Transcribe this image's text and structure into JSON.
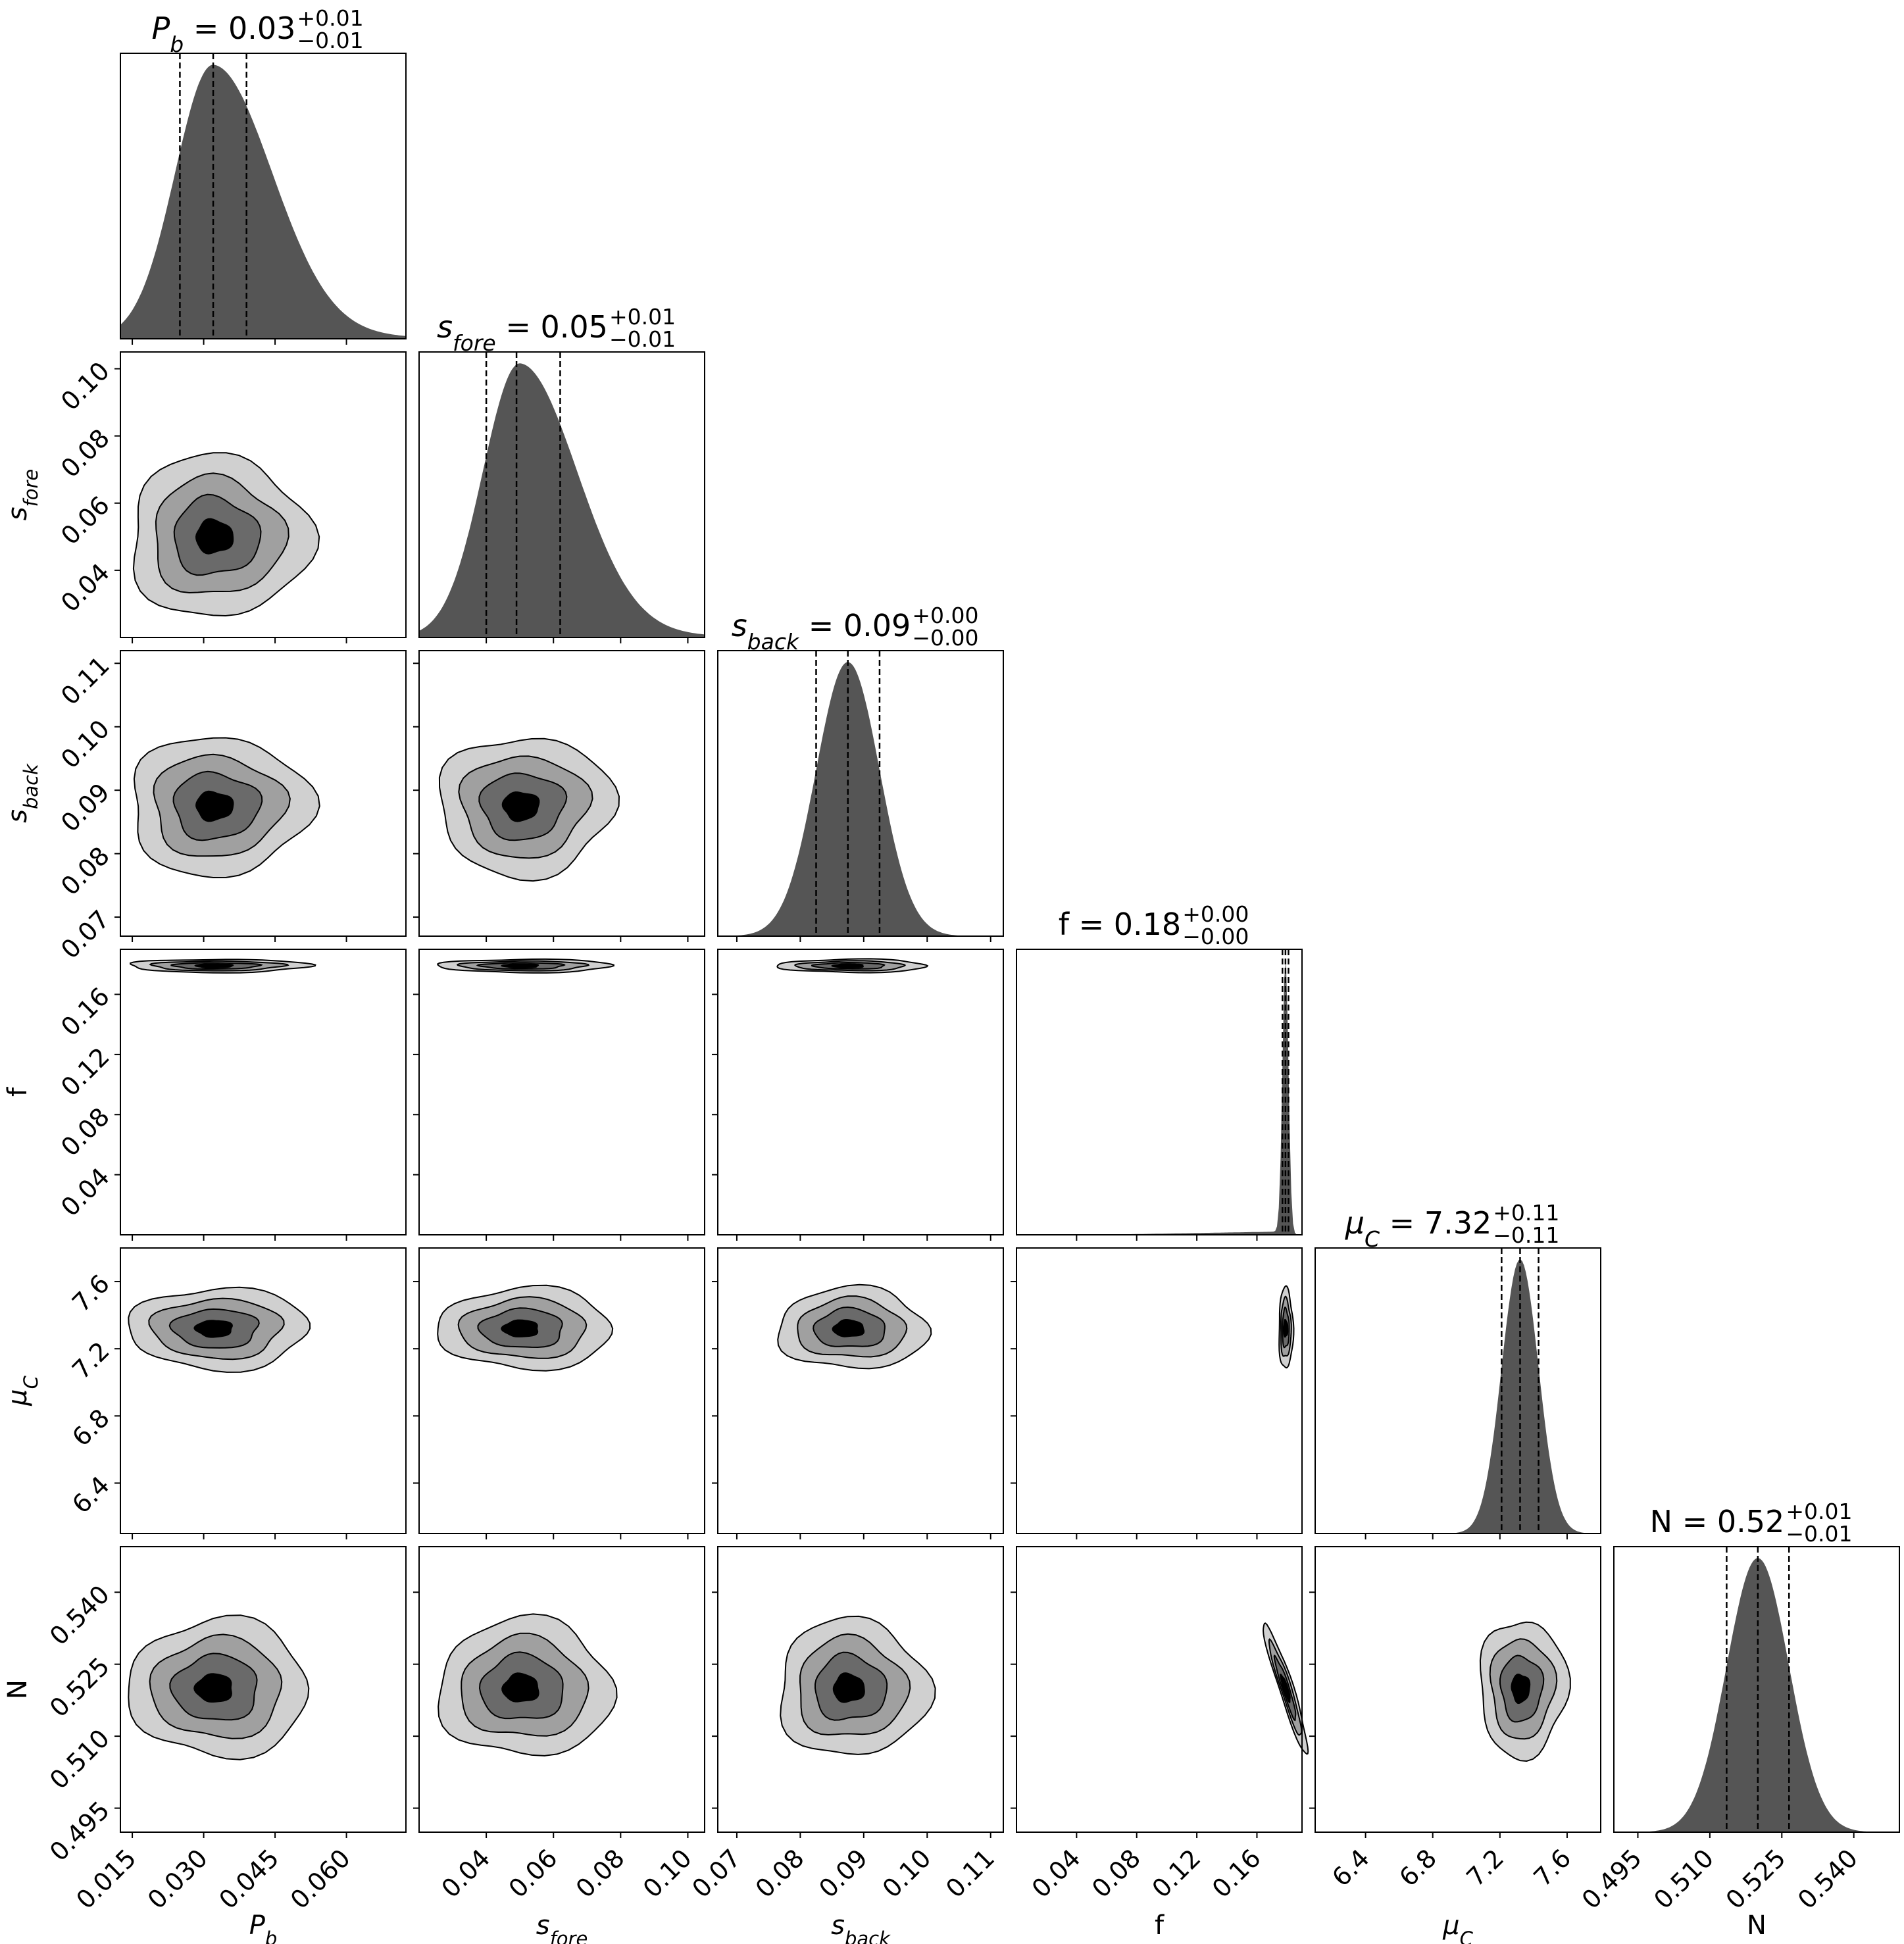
{
  "chart_data": {
    "type": "corner",
    "parameters": [
      {
        "key": "Pb",
        "symbol": "P",
        "sub": "b",
        "italic": true,
        "median": 0.032,
        "std": 0.008,
        "quantiles": [
          0.025,
          0.032,
          0.039
        ],
        "range": [
          0.0125,
          0.0725
        ],
        "ticks": [
          0.015,
          0.03,
          0.045,
          0.06
        ],
        "tick_labels": [
          "0.015",
          "0.030",
          "0.045",
          "0.060"
        ],
        "title": {
          "value": "0.03",
          "plus": "+0.01",
          "minus": "−0.01"
        }
      },
      {
        "key": "sfore",
        "symbol": "s",
        "sub": "fore",
        "italic": true,
        "median": 0.05,
        "std": 0.011,
        "quantiles": [
          0.04,
          0.049,
          0.062
        ],
        "range": [
          0.02,
          0.105
        ],
        "ticks": [
          0.04,
          0.06,
          0.08,
          0.1
        ],
        "tick_labels": [
          "0.04",
          "0.06",
          "0.08",
          "0.10"
        ],
        "title": {
          "value": "0.05",
          "plus": "+0.01",
          "minus": "−0.01"
        }
      },
      {
        "key": "sback",
        "symbol": "s",
        "sub": "back",
        "italic": true,
        "median": 0.0875,
        "std": 0.005,
        "quantiles": [
          0.0825,
          0.0875,
          0.0925
        ],
        "range": [
          0.067,
          0.112
        ],
        "ticks": [
          0.07,
          0.08,
          0.09,
          0.1,
          0.11
        ],
        "tick_labels": [
          "0.07",
          "0.08",
          "0.09",
          "0.10",
          "0.11"
        ],
        "title": {
          "value": "0.09",
          "plus": "+0.00",
          "minus": "−0.00"
        }
      },
      {
        "key": "f",
        "symbol": "f",
        "sub": "",
        "italic": false,
        "median": 0.179,
        "std": 0.002,
        "quantiles": [
          0.177,
          0.179,
          0.181
        ],
        "range": [
          0.0,
          0.19
        ],
        "ticks": [
          0.04,
          0.08,
          0.12,
          0.16
        ],
        "tick_labels": [
          "0.04",
          "0.08",
          "0.12",
          "0.16"
        ],
        "title": {
          "value": "0.18",
          "plus": "+0.00",
          "minus": "−0.00"
        }
      },
      {
        "key": "muC",
        "symbol": "μ",
        "sub": "C",
        "italic": true,
        "median": 7.32,
        "std": 0.11,
        "quantiles": [
          7.21,
          7.32,
          7.43
        ],
        "range": [
          6.1,
          7.8
        ],
        "ticks": [
          6.4,
          6.8,
          7.2,
          7.6
        ],
        "tick_labels": [
          "6.4",
          "6.8",
          "7.2",
          "7.6"
        ],
        "title": {
          "value": "7.32",
          "plus": "+0.11",
          "minus": "−0.11"
        }
      },
      {
        "key": "N",
        "symbol": "N",
        "sub": "",
        "italic": false,
        "median": 0.52,
        "std": 0.0065,
        "quantiles": [
          0.5135,
          0.52,
          0.5265
        ],
        "range": [
          0.49,
          0.5495
        ],
        "ticks": [
          0.495,
          0.51,
          0.525,
          0.54
        ],
        "tick_labels": [
          "0.495",
          "0.510",
          "0.525",
          "0.540"
        ],
        "title": {
          "value": "0.52",
          "plus": "+0.01",
          "minus": "−0.01"
        }
      }
    ],
    "contour_levels": 4,
    "colors": {
      "hist_fill": "#555555",
      "contour_fills": [
        "#d0d0d0",
        "#a0a0a0",
        "#6a6a6a",
        "#000000"
      ],
      "line": "#000000"
    }
  }
}
